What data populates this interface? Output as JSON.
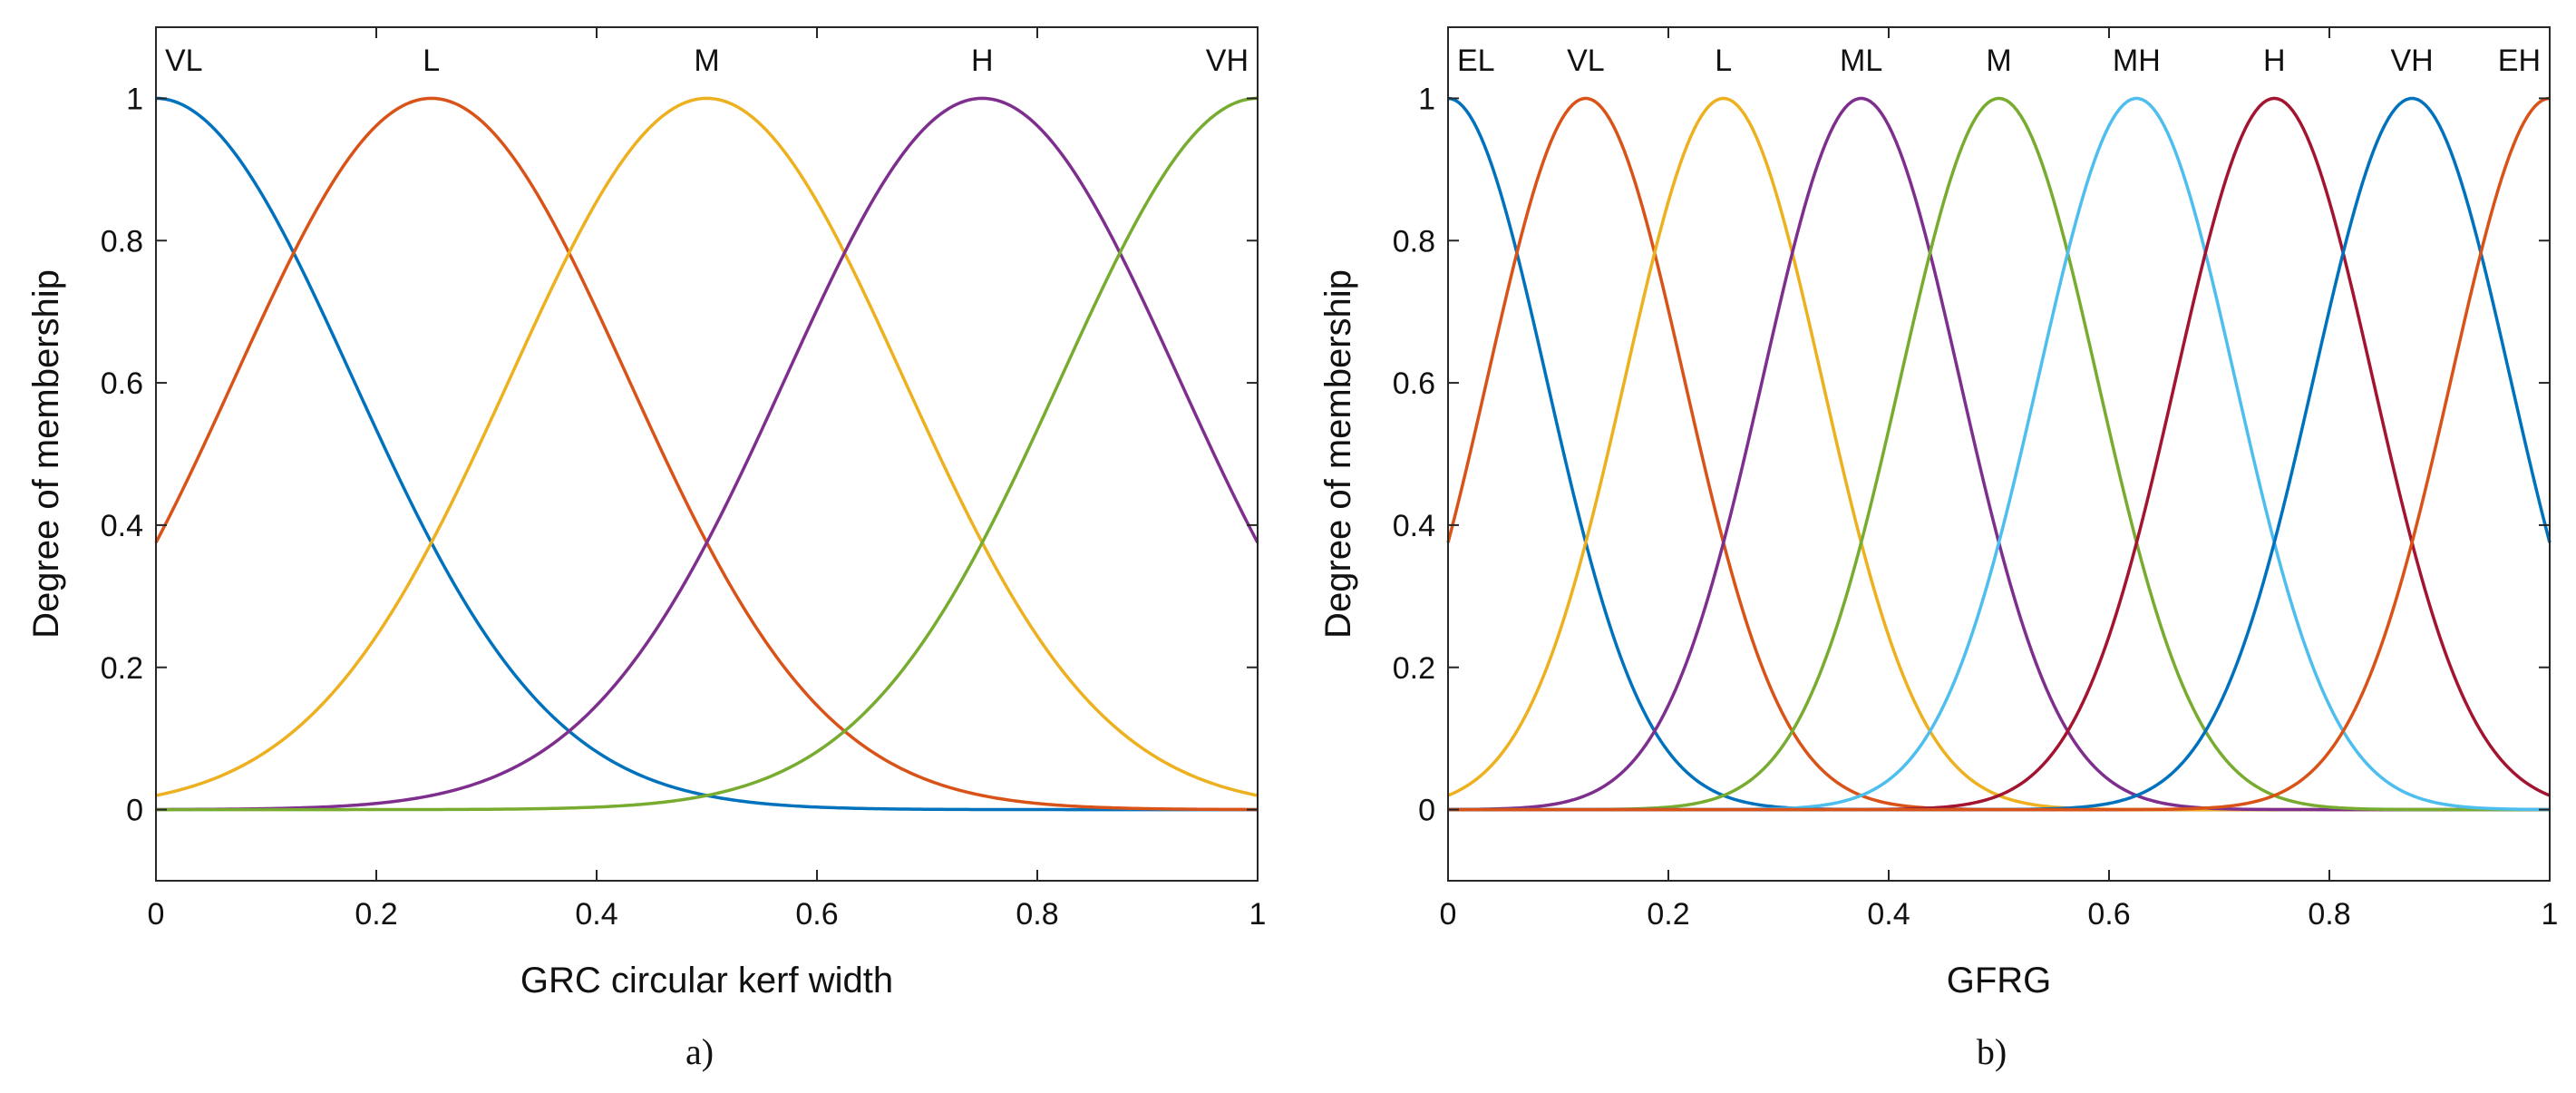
{
  "colors": {
    "blue": "#0072BD",
    "orange": "#D95319",
    "yellow": "#EDB120",
    "purple": "#7E2F8E",
    "green": "#77AC30",
    "cyan": "#4DBEEE",
    "red": "#A2142F",
    "axis": "#262626"
  },
  "chart_data": [
    {
      "type": "line",
      "panel_label": "a)",
      "xlabel": "GRC circular kerf width",
      "ylabel": "Degree of membership",
      "xlim": [
        0,
        1
      ],
      "ylim": [
        -0.1,
        1.1
      ],
      "xticks": [
        0,
        0.2,
        0.4,
        0.6,
        0.8,
        1
      ],
      "xtick_labels": [
        "0",
        "0.2",
        "0.4",
        "0.6",
        "0.8",
        "1"
      ],
      "yticks": [
        0,
        0.2,
        0.4,
        0.6,
        0.8,
        1
      ],
      "ytick_labels": [
        "0",
        "0.2",
        "0.4",
        "0.6",
        "0.8",
        "1"
      ],
      "membership_function": "gaussian",
      "sigma": 0.1786,
      "series": [
        {
          "name": "VL",
          "center": 0.0,
          "color_key": "blue"
        },
        {
          "name": "L",
          "center": 0.25,
          "color_key": "orange"
        },
        {
          "name": "M",
          "center": 0.5,
          "color_key": "yellow"
        },
        {
          "name": "H",
          "center": 0.75,
          "color_key": "purple"
        },
        {
          "name": "VH",
          "center": 1.0,
          "color_key": "green"
        }
      ]
    },
    {
      "type": "line",
      "panel_label": "b)",
      "xlabel": "GFRG",
      "ylabel": "Degree of membership",
      "xlim": [
        0,
        1
      ],
      "ylim": [
        -0.1,
        1.1
      ],
      "xticks": [
        0,
        0.2,
        0.4,
        0.6,
        0.8,
        1
      ],
      "xtick_labels": [
        "0",
        "0.2",
        "0.4",
        "0.6",
        "0.8",
        "1"
      ],
      "yticks": [
        0,
        0.2,
        0.4,
        0.6,
        0.8,
        1
      ],
      "ytick_labels": [
        "0",
        "0.2",
        "0.4",
        "0.6",
        "0.8",
        "1"
      ],
      "membership_function": "gaussian",
      "sigma": 0.0893,
      "series": [
        {
          "name": "EL",
          "center": 0.0,
          "color_key": "blue"
        },
        {
          "name": "VL",
          "center": 0.125,
          "color_key": "orange"
        },
        {
          "name": "L",
          "center": 0.25,
          "color_key": "yellow"
        },
        {
          "name": "ML",
          "center": 0.375,
          "color_key": "purple"
        },
        {
          "name": "M",
          "center": 0.5,
          "color_key": "green"
        },
        {
          "name": "MH",
          "center": 0.625,
          "color_key": "cyan"
        },
        {
          "name": "H",
          "center": 0.75,
          "color_key": "red"
        },
        {
          "name": "VH",
          "center": 0.875,
          "color_key": "blue"
        },
        {
          "name": "EH",
          "center": 1.0,
          "color_key": "orange"
        }
      ]
    }
  ]
}
